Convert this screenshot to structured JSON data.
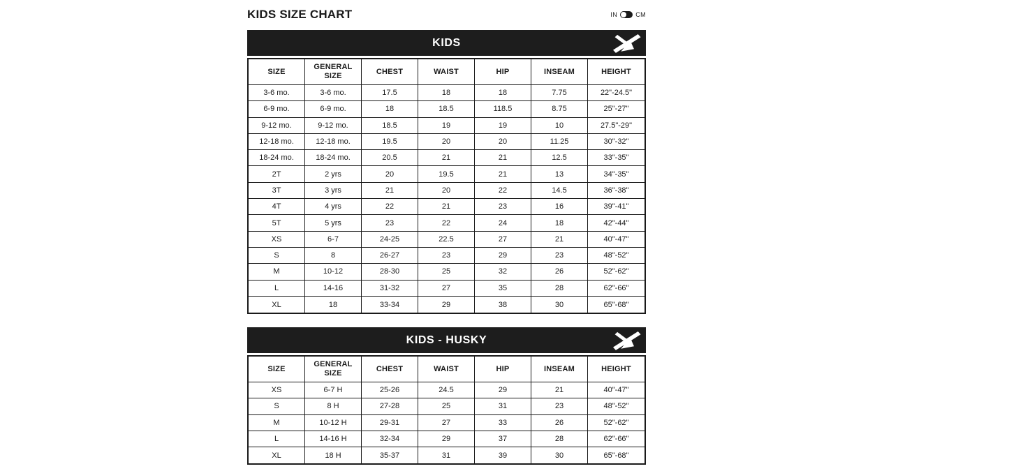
{
  "page": {
    "title": "KIDS SIZE CHART",
    "unit_toggle": {
      "options": [
        "IN",
        "CM"
      ],
      "selected": "IN"
    }
  },
  "icons": {
    "brand_logo": "stylized-x-brand-mark",
    "toggle_knob": "toggle-knob-circle"
  },
  "colors": {
    "page_background": "#ffffff",
    "band_background": "#1d1d1d",
    "band_text": "#ffffff",
    "table_border": "#1a1a1a",
    "text": "#1a1a1a",
    "toggle_pill": "#1a1a1a",
    "toggle_knob": "#ffffff"
  },
  "tables": [
    {
      "band_title": "KIDS",
      "columns": [
        "SIZE",
        "GENERAL SIZE",
        "CHEST",
        "WAIST",
        "HIP",
        "INSEAM",
        "HEIGHT"
      ],
      "rows": [
        [
          "3-6 mo.",
          "3-6 mo.",
          "17.5",
          "18",
          "18",
          "7.75",
          "22\"-24.5\""
        ],
        [
          "6-9 mo.",
          "6-9 mo.",
          "18",
          "18.5",
          "118.5",
          "8.75",
          "25\"-27\""
        ],
        [
          "9-12 mo.",
          "9-12 mo.",
          "18.5",
          "19",
          "19",
          "10",
          "27.5\"-29\""
        ],
        [
          "12-18 mo.",
          "12-18 mo.",
          "19.5",
          "20",
          "20",
          "11.25",
          "30\"-32\""
        ],
        [
          "18-24 mo.",
          "18-24 mo.",
          "20.5",
          "21",
          "21",
          "12.5",
          "33\"-35\""
        ],
        [
          "2T",
          "2 yrs",
          "20",
          "19.5",
          "21",
          "13",
          "34\"-35\""
        ],
        [
          "3T",
          "3 yrs",
          "21",
          "20",
          "22",
          "14.5",
          "36\"-38\""
        ],
        [
          "4T",
          "4 yrs",
          "22",
          "21",
          "23",
          "16",
          "39\"-41\""
        ],
        [
          "5T",
          "5 yrs",
          "23",
          "22",
          "24",
          "18",
          "42\"-44\""
        ],
        [
          "XS",
          "6-7",
          "24-25",
          "22.5",
          "27",
          "21",
          "40\"-47\""
        ],
        [
          "S",
          "8",
          "26-27",
          "23",
          "29",
          "23",
          "48\"-52\""
        ],
        [
          "M",
          "10-12",
          "28-30",
          "25",
          "32",
          "26",
          "52\"-62\""
        ],
        [
          "L",
          "14-16",
          "31-32",
          "27",
          "35",
          "28",
          "62\"-66\""
        ],
        [
          "XL",
          "18",
          "33-34",
          "29",
          "38",
          "30",
          "65\"-68\""
        ]
      ]
    },
    {
      "band_title": "KIDS - HUSKY",
      "columns": [
        "SIZE",
        "GENERAL SIZE",
        "CHEST",
        "WAIST",
        "HIP",
        "INSEAM",
        "HEIGHT"
      ],
      "rows": [
        [
          "XS",
          "6-7 H",
          "25-26",
          "24.5",
          "29",
          "21",
          "40\"-47\""
        ],
        [
          "S",
          "8 H",
          "27-28",
          "25",
          "31",
          "23",
          "48\"-52\""
        ],
        [
          "M",
          "10-12 H",
          "29-31",
          "27",
          "33",
          "26",
          "52\"-62\""
        ],
        [
          "L",
          "14-16 H",
          "32-34",
          "29",
          "37",
          "28",
          "62\"-66\""
        ],
        [
          "XL",
          "18 H",
          "35-37",
          "31",
          "39",
          "30",
          "65\"-68\""
        ]
      ]
    }
  ]
}
